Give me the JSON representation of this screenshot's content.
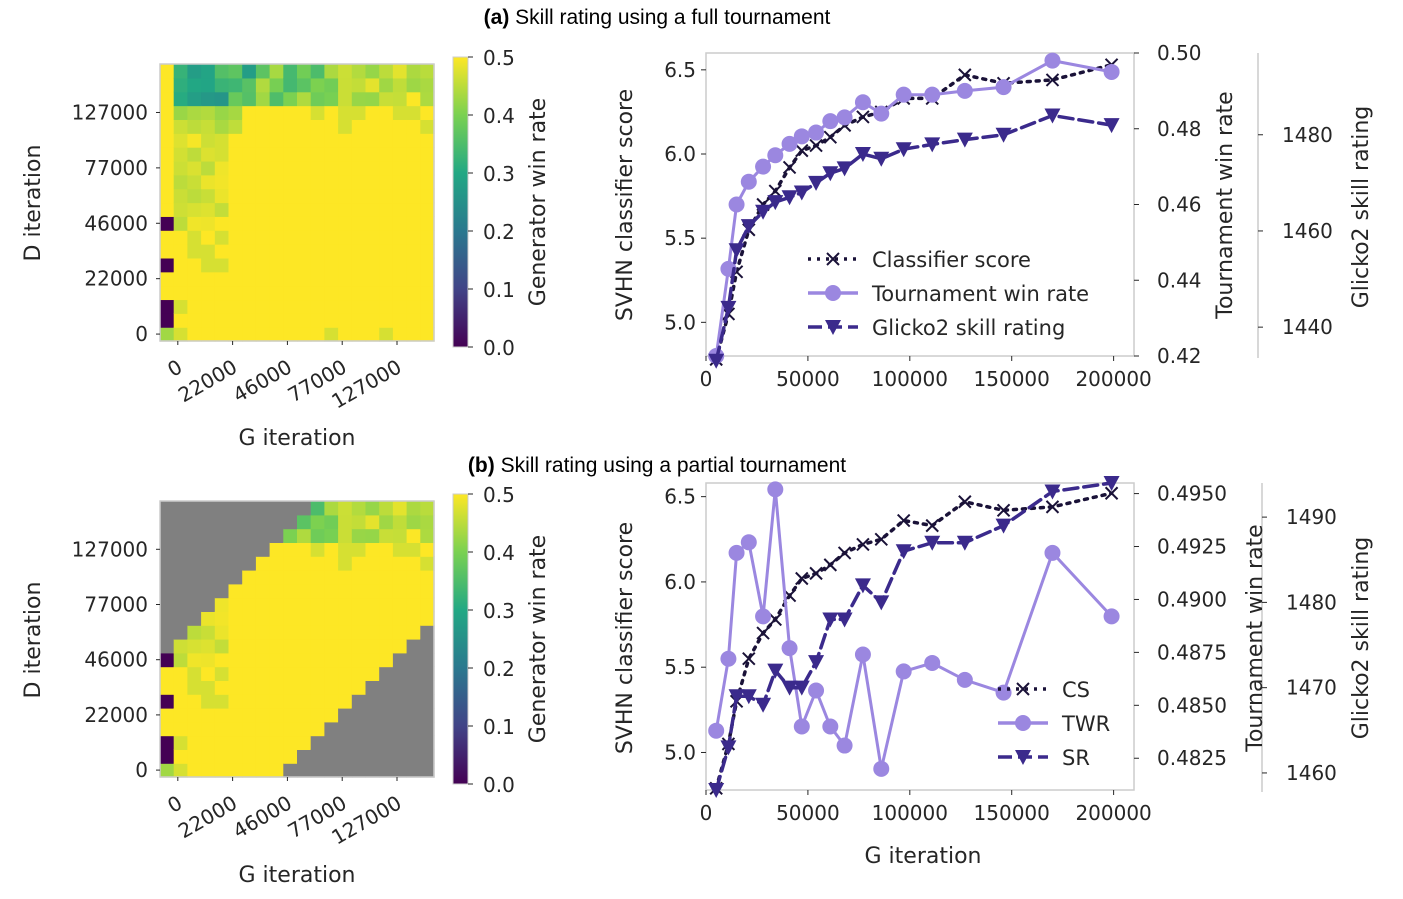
{
  "titles": {
    "a_prefix": "(a)",
    "a_text": "Skill rating using a full tournament",
    "b_prefix": "(b)",
    "b_text": "Skill rating using a partial tournament"
  },
  "colors": {
    "classifier": "#1a1238",
    "tournament": "#9b87e0",
    "glicko": "#3b2a8c",
    "masked": "#808080"
  },
  "chart_data": [
    {
      "id": "heat_a",
      "type": "heatmap",
      "xlabel": "G iteration",
      "ylabel": "D iteration",
      "colorbar_label": "Generator win rate",
      "colorbar_ticks": [
        "0.0",
        "0.1",
        "0.2",
        "0.3",
        "0.4",
        "0.5"
      ],
      "colorbar_range": [
        0,
        0.5
      ],
      "x_tick_labels": [
        "0",
        "22000",
        "46000",
        "77000",
        "127000"
      ],
      "y_tick_labels": [
        "0",
        "22000",
        "46000",
        "77000",
        "127000"
      ],
      "grid_size": 20,
      "partial": false
    },
    {
      "id": "line_a",
      "type": "line",
      "ylabel": "SVHN classifier score",
      "ylabel_right1": "Tournament win rate",
      "ylabel_right2": "Glicko2 skill rating",
      "xlabel": "",
      "xlim": [
        0,
        210000
      ],
      "x_ticks": [
        "0",
        "50000",
        "100000",
        "150000",
        "200000"
      ],
      "ylim": [
        4.8,
        6.6
      ],
      "y_ticks": [
        "5.0",
        "5.5",
        "6.0",
        "6.5"
      ],
      "right1_lim": [
        0.42,
        0.5
      ],
      "right1_ticks": [
        "0.42",
        "0.44",
        "0.46",
        "0.48",
        "0.50"
      ],
      "right2_lim": [
        1434,
        1497
      ],
      "right2_ticks": [
        "1440",
        "1460",
        "1480"
      ],
      "legend_position": "lower-right",
      "series": [
        {
          "name": "Classifier score",
          "axis": "left",
          "marker": "x",
          "style": "dotted",
          "x": [
            5000,
            11000,
            15000,
            21000,
            28000,
            34000,
            41000,
            47000,
            54000,
            61000,
            68000,
            77000,
            86000,
            97000,
            111000,
            127000,
            146000,
            170000,
            199000
          ],
          "values": [
            4.78,
            5.05,
            5.3,
            5.55,
            5.7,
            5.78,
            5.92,
            6.02,
            6.05,
            6.1,
            6.17,
            6.22,
            6.25,
            6.33,
            6.33,
            6.47,
            6.42,
            6.44,
            6.53
          ]
        },
        {
          "name": "Tournament win rate",
          "axis": "right1",
          "marker": "o",
          "style": "solid",
          "x": [
            5000,
            11000,
            15000,
            21000,
            28000,
            34000,
            41000,
            47000,
            54000,
            61000,
            68000,
            77000,
            86000,
            97000,
            111000,
            127000,
            146000,
            170000,
            199000
          ],
          "values": [
            0.42,
            0.443,
            0.46,
            0.466,
            0.47,
            0.473,
            0.476,
            0.478,
            0.479,
            0.482,
            0.483,
            0.487,
            0.484,
            0.489,
            0.489,
            0.49,
            0.491,
            0.498,
            0.495
          ]
        },
        {
          "name": "Glicko2 skill rating",
          "axis": "right2",
          "marker": "v",
          "style": "dashed",
          "x": [
            5000,
            11000,
            15000,
            21000,
            28000,
            34000,
            41000,
            47000,
            54000,
            61000,
            68000,
            77000,
            86000,
            97000,
            111000,
            127000,
            146000,
            170000,
            199000
          ],
          "values": [
            1433,
            1444,
            1456,
            1461,
            1464,
            1466,
            1467,
            1468,
            1470,
            1472,
            1473,
            1476,
            1475,
            1477,
            1478,
            1479,
            1480,
            1484,
            1482
          ]
        }
      ]
    },
    {
      "id": "heat_b",
      "type": "heatmap",
      "xlabel": "G iteration",
      "ylabel": "D iteration",
      "colorbar_label": "Generator win rate",
      "colorbar_ticks": [
        "0.0",
        "0.1",
        "0.2",
        "0.3",
        "0.4",
        "0.5"
      ],
      "colorbar_range": [
        0,
        0.5
      ],
      "x_tick_labels": [
        "0",
        "22000",
        "46000",
        "77000",
        "127000"
      ],
      "y_tick_labels": [
        "0",
        "22000",
        "46000",
        "77000",
        "127000"
      ],
      "grid_size": 20,
      "partial": true
    },
    {
      "id": "line_b",
      "type": "line",
      "ylabel": "SVHN classifier score",
      "ylabel_right1": "Tournament win rate",
      "ylabel_right2": "Glicko2 skill rating",
      "xlabel": "G iteration",
      "xlim": [
        0,
        210000
      ],
      "x_ticks": [
        "0",
        "50000",
        "100000",
        "150000",
        "200000"
      ],
      "ylim": [
        4.78,
        6.58
      ],
      "y_ticks": [
        "5.0",
        "5.5",
        "6.0",
        "6.5"
      ],
      "right1_lim": [
        0.481,
        0.4955
      ],
      "right1_ticks": [
        "0.4825",
        "0.4850",
        "0.4875",
        "0.4900",
        "0.4925",
        "0.4950"
      ],
      "right2_lim": [
        1458,
        1494
      ],
      "right2_ticks": [
        "1460",
        "1470",
        "1480",
        "1490"
      ],
      "legend_position": "lower-right",
      "series": [
        {
          "name": "CS",
          "axis": "left",
          "marker": "x",
          "style": "dotted",
          "x": [
            5000,
            11000,
            15000,
            21000,
            28000,
            34000,
            41000,
            47000,
            54000,
            61000,
            68000,
            77000,
            86000,
            97000,
            111000,
            127000,
            146000,
            170000,
            199000
          ],
          "values": [
            4.79,
            5.05,
            5.3,
            5.55,
            5.7,
            5.78,
            5.92,
            6.02,
            6.05,
            6.1,
            6.17,
            6.22,
            6.25,
            6.36,
            6.33,
            6.47,
            6.42,
            6.44,
            6.52
          ]
        },
        {
          "name": "TWR",
          "axis": "right1",
          "marker": "o",
          "style": "solid",
          "x": [
            5000,
            11000,
            15000,
            21000,
            28000,
            34000,
            41000,
            47000,
            54000,
            61000,
            68000,
            77000,
            86000,
            97000,
            111000,
            127000,
            146000,
            170000,
            199000
          ],
          "values": [
            0.4838,
            0.4872,
            0.4922,
            0.4927,
            0.4892,
            0.4952,
            0.4877,
            0.484,
            0.4857,
            0.484,
            0.4831,
            0.4874,
            0.482,
            0.4866,
            0.487,
            0.4862,
            0.4856,
            0.4922,
            0.4892
          ]
        },
        {
          "name": "SR",
          "axis": "right2",
          "marker": "v",
          "style": "dashed",
          "x": [
            5000,
            11000,
            15000,
            21000,
            28000,
            34000,
            41000,
            47000,
            54000,
            61000,
            68000,
            77000,
            86000,
            97000,
            111000,
            127000,
            146000,
            170000,
            199000
          ],
          "values": [
            1458,
            1463,
            1469,
            1469,
            1468,
            1472,
            1470,
            1470,
            1473,
            1478,
            1478,
            1482,
            1480,
            1486,
            1487,
            1487,
            1489,
            1493,
            1494
          ]
        }
      ]
    }
  ]
}
